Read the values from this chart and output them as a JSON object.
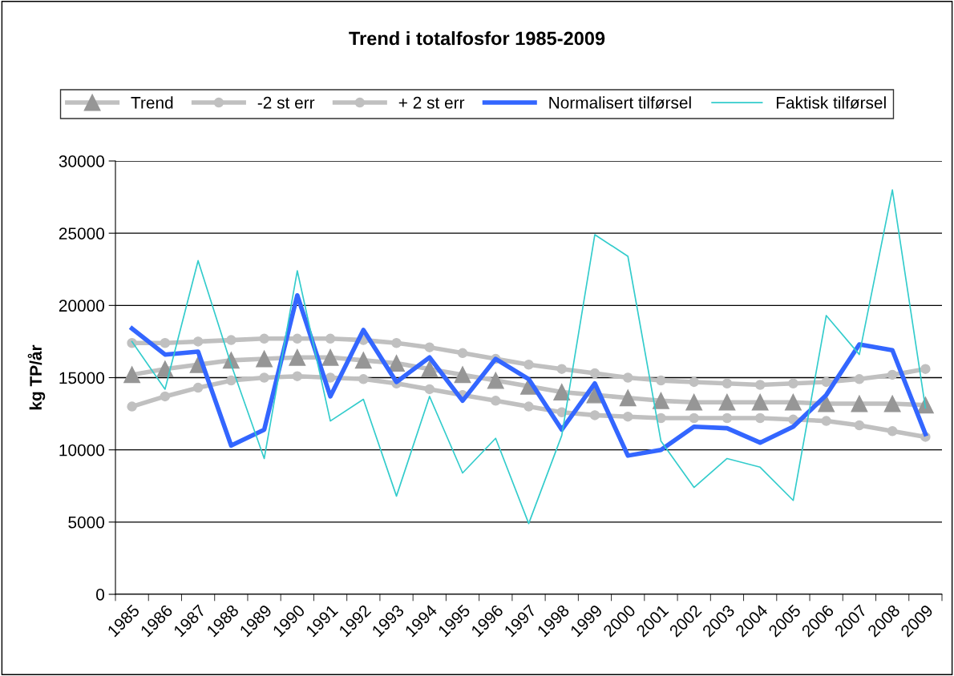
{
  "chart_data": {
    "type": "line",
    "title": "Trend i totalfosfor 1985-2009",
    "ylabel": "kg TP/år",
    "categories": [
      "1985",
      "1986",
      "1987",
      "1988",
      "1989",
      "1990",
      "1991",
      "1992",
      "1993",
      "1994",
      "1995",
      "1996",
      "1997",
      "1998",
      "1999",
      "2000",
      "2001",
      "2002",
      "2003",
      "2004",
      "2005",
      "2006",
      "2007",
      "2008",
      "2009"
    ],
    "series": [
      {
        "name": "Trend",
        "color": "#c0c0c0",
        "marker": "triangle",
        "values": [
          15200,
          15600,
          15900,
          16200,
          16300,
          16400,
          16400,
          16200,
          16000,
          15600,
          15200,
          14800,
          14400,
          14000,
          13800,
          13600,
          13400,
          13300,
          13300,
          13300,
          13300,
          13200,
          13200,
          13200,
          13100
        ]
      },
      {
        "name": "-2 st err",
        "color": "#c0c0c0",
        "marker": "circle",
        "values": [
          13000,
          13700,
          14300,
          14800,
          15000,
          15100,
          15000,
          14900,
          14600,
          14200,
          13800,
          13400,
          13000,
          12600,
          12400,
          12300,
          12200,
          12200,
          12200,
          12200,
          12100,
          12000,
          11700,
          11300,
          10900
        ]
      },
      {
        "name": "+ 2 st err",
        "color": "#c0c0c0",
        "marker": "circle",
        "values": [
          17400,
          17400,
          17500,
          17600,
          17700,
          17700,
          17700,
          17600,
          17400,
          17100,
          16700,
          16300,
          15900,
          15600,
          15300,
          15000,
          14800,
          14700,
          14600,
          14500,
          14600,
          14700,
          14900,
          15200,
          15600
        ]
      },
      {
        "name": "Normalisert tilførsel",
        "color": "#3366ff",
        "marker": "none",
        "values": [
          18400,
          16600,
          16800,
          10300,
          11400,
          20700,
          13700,
          18300,
          14700,
          16400,
          13400,
          16300,
          14900,
          11400,
          14600,
          9600,
          10000,
          11600,
          11500,
          10500,
          11600,
          13800,
          17300,
          16900,
          11100
        ]
      },
      {
        "name": "Faktisk tilførsel",
        "color": "#33cccc",
        "marker": "none",
        "values": [
          17500,
          14200,
          23100,
          15900,
          9400,
          22400,
          12000,
          13500,
          6800,
          13700,
          8400,
          10800,
          4900,
          11000,
          24900,
          23400,
          10600,
          7400,
          9400,
          8800,
          6500,
          19300,
          16600,
          28000,
          12900
        ]
      }
    ],
    "ylim": [
      0,
      30000
    ],
    "yticks": [
      0,
      5000,
      10000,
      15000,
      20000,
      25000,
      30000
    ],
    "grid": "y",
    "legend": "top"
  }
}
